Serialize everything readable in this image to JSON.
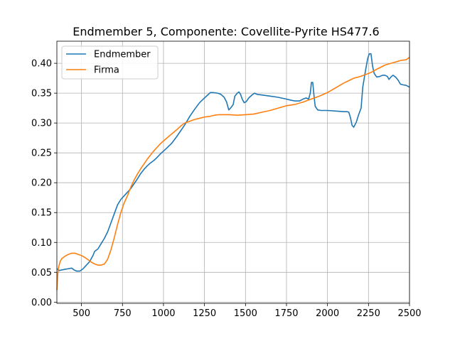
{
  "chart_data": {
    "type": "line",
    "title": "Endmember 5, Componente: Covellite-Pyrite HS477.6",
    "xlabel": "",
    "ylabel": "",
    "xlim": [
      350,
      2500
    ],
    "ylim": [
      -0.002,
      0.437
    ],
    "x_ticks": [
      500,
      750,
      1000,
      1250,
      1500,
      1750,
      2000,
      2250,
      2500
    ],
    "x_tick_labels": [
      "500",
      "750",
      "1000",
      "1250",
      "1500",
      "1750",
      "2000",
      "2250",
      "2500"
    ],
    "y_ticks": [
      0.0,
      0.05,
      0.1,
      0.15,
      0.2,
      0.25,
      0.3,
      0.35,
      0.4
    ],
    "y_tick_labels": [
      "0.00",
      "0.05",
      "0.10",
      "0.15",
      "0.20",
      "0.25",
      "0.30",
      "0.35",
      "0.40"
    ],
    "grid": true,
    "legend_position": "top-left",
    "series": [
      {
        "name": "Endmember",
        "color": "#1f77b4",
        "points": [
          [
            350,
            0.056
          ],
          [
            365,
            0.053
          ],
          [
            380,
            0.054
          ],
          [
            400,
            0.055
          ],
          [
            420,
            0.056
          ],
          [
            440,
            0.057
          ],
          [
            455,
            0.054
          ],
          [
            470,
            0.052
          ],
          [
            490,
            0.052
          ],
          [
            510,
            0.056
          ],
          [
            530,
            0.062
          ],
          [
            550,
            0.068
          ],
          [
            570,
            0.078
          ],
          [
            580,
            0.085
          ],
          [
            600,
            0.089
          ],
          [
            620,
            0.098
          ],
          [
            640,
            0.107
          ],
          [
            660,
            0.118
          ],
          [
            680,
            0.133
          ],
          [
            700,
            0.148
          ],
          [
            720,
            0.163
          ],
          [
            740,
            0.172
          ],
          [
            760,
            0.178
          ],
          [
            780,
            0.184
          ],
          [
            800,
            0.19
          ],
          [
            820,
            0.198
          ],
          [
            840,
            0.206
          ],
          [
            860,
            0.215
          ],
          [
            880,
            0.222
          ],
          [
            900,
            0.228
          ],
          [
            920,
            0.233
          ],
          [
            940,
            0.237
          ],
          [
            960,
            0.242
          ],
          [
            980,
            0.248
          ],
          [
            1000,
            0.253
          ],
          [
            1020,
            0.258
          ],
          [
            1050,
            0.266
          ],
          [
            1080,
            0.277
          ],
          [
            1100,
            0.285
          ],
          [
            1130,
            0.297
          ],
          [
            1160,
            0.311
          ],
          [
            1190,
            0.323
          ],
          [
            1220,
            0.334
          ],
          [
            1250,
            0.342
          ],
          [
            1270,
            0.347
          ],
          [
            1285,
            0.351
          ],
          [
            1300,
            0.351
          ],
          [
            1330,
            0.35
          ],
          [
            1350,
            0.348
          ],
          [
            1370,
            0.343
          ],
          [
            1385,
            0.335
          ],
          [
            1398,
            0.322
          ],
          [
            1412,
            0.326
          ],
          [
            1425,
            0.331
          ],
          [
            1435,
            0.345
          ],
          [
            1450,
            0.35
          ],
          [
            1460,
            0.352
          ],
          [
            1470,
            0.348
          ],
          [
            1480,
            0.34
          ],
          [
            1492,
            0.334
          ],
          [
            1505,
            0.336
          ],
          [
            1520,
            0.342
          ],
          [
            1540,
            0.347
          ],
          [
            1555,
            0.35
          ],
          [
            1570,
            0.348
          ],
          [
            1600,
            0.347
          ],
          [
            1650,
            0.345
          ],
          [
            1700,
            0.343
          ],
          [
            1750,
            0.34
          ],
          [
            1780,
            0.338
          ],
          [
            1800,
            0.337
          ],
          [
            1830,
            0.337
          ],
          [
            1850,
            0.34
          ],
          [
            1870,
            0.342
          ],
          [
            1885,
            0.34
          ],
          [
            1895,
            0.35
          ],
          [
            1902,
            0.368
          ],
          [
            1910,
            0.368
          ],
          [
            1918,
            0.345
          ],
          [
            1925,
            0.328
          ],
          [
            1940,
            0.322
          ],
          [
            1960,
            0.321
          ],
          [
            2000,
            0.321
          ],
          [
            2050,
            0.32
          ],
          [
            2100,
            0.319
          ],
          [
            2120,
            0.319
          ],
          [
            2130,
            0.318
          ],
          [
            2140,
            0.309
          ],
          [
            2150,
            0.296
          ],
          [
            2160,
            0.293
          ],
          [
            2175,
            0.301
          ],
          [
            2190,
            0.314
          ],
          [
            2205,
            0.325
          ],
          [
            2215,
            0.36
          ],
          [
            2230,
            0.385
          ],
          [
            2245,
            0.408
          ],
          [
            2255,
            0.416
          ],
          [
            2265,
            0.416
          ],
          [
            2275,
            0.395
          ],
          [
            2285,
            0.383
          ],
          [
            2300,
            0.377
          ],
          [
            2320,
            0.378
          ],
          [
            2335,
            0.38
          ],
          [
            2350,
            0.38
          ],
          [
            2365,
            0.378
          ],
          [
            2375,
            0.373
          ],
          [
            2390,
            0.378
          ],
          [
            2400,
            0.38
          ],
          [
            2415,
            0.377
          ],
          [
            2430,
            0.372
          ],
          [
            2445,
            0.365
          ],
          [
            2460,
            0.364
          ],
          [
            2480,
            0.363
          ],
          [
            2500,
            0.36
          ]
        ]
      },
      {
        "name": "Firma",
        "color": "#ff7f0e",
        "points": [
          [
            350,
            0.02
          ],
          [
            355,
            0.045
          ],
          [
            360,
            0.058
          ],
          [
            370,
            0.068
          ],
          [
            380,
            0.073
          ],
          [
            400,
            0.077
          ],
          [
            420,
            0.08
          ],
          [
            440,
            0.082
          ],
          [
            460,
            0.082
          ],
          [
            480,
            0.08
          ],
          [
            500,
            0.078
          ],
          [
            520,
            0.075
          ],
          [
            540,
            0.071
          ],
          [
            560,
            0.067
          ],
          [
            580,
            0.064
          ],
          [
            600,
            0.062
          ],
          [
            620,
            0.062
          ],
          [
            640,
            0.064
          ],
          [
            660,
            0.072
          ],
          [
            680,
            0.088
          ],
          [
            700,
            0.108
          ],
          [
            720,
            0.13
          ],
          [
            740,
            0.15
          ],
          [
            760,
            0.166
          ],
          [
            780,
            0.178
          ],
          [
            800,
            0.192
          ],
          [
            820,
            0.204
          ],
          [
            840,
            0.214
          ],
          [
            860,
            0.223
          ],
          [
            880,
            0.231
          ],
          [
            900,
            0.239
          ],
          [
            920,
            0.246
          ],
          [
            940,
            0.253
          ],
          [
            960,
            0.259
          ],
          [
            980,
            0.265
          ],
          [
            1000,
            0.27
          ],
          [
            1030,
            0.277
          ],
          [
            1060,
            0.284
          ],
          [
            1090,
            0.291
          ],
          [
            1110,
            0.296
          ],
          [
            1130,
            0.3
          ],
          [
            1160,
            0.303
          ],
          [
            1190,
            0.306
          ],
          [
            1220,
            0.308
          ],
          [
            1250,
            0.31
          ],
          [
            1280,
            0.311
          ],
          [
            1310,
            0.313
          ],
          [
            1340,
            0.314
          ],
          [
            1370,
            0.314
          ],
          [
            1400,
            0.314
          ],
          [
            1450,
            0.313
          ],
          [
            1500,
            0.314
          ],
          [
            1550,
            0.315
          ],
          [
            1600,
            0.318
          ],
          [
            1650,
            0.321
          ],
          [
            1700,
            0.325
          ],
          [
            1750,
            0.329
          ],
          [
            1800,
            0.331
          ],
          [
            1850,
            0.335
          ],
          [
            1900,
            0.34
          ],
          [
            1950,
            0.345
          ],
          [
            2000,
            0.351
          ],
          [
            2050,
            0.359
          ],
          [
            2100,
            0.367
          ],
          [
            2130,
            0.371
          ],
          [
            2160,
            0.375
          ],
          [
            2200,
            0.378
          ],
          [
            2230,
            0.381
          ],
          [
            2260,
            0.384
          ],
          [
            2300,
            0.39
          ],
          [
            2350,
            0.397
          ],
          [
            2400,
            0.401
          ],
          [
            2450,
            0.405
          ],
          [
            2480,
            0.406
          ],
          [
            2490,
            0.408
          ],
          [
            2500,
            0.41
          ]
        ]
      }
    ]
  }
}
